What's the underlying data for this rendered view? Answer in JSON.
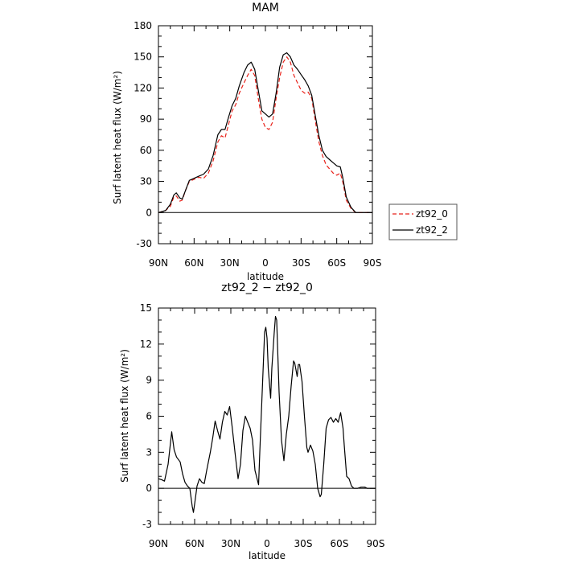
{
  "chart_data": [
    {
      "type": "line",
      "title": "MAM",
      "xlabel": "latitude",
      "ylabel": "Surf latent heat flux (W/m²)",
      "xlim": [
        90,
        -90
      ],
      "ylim": [
        -30,
        180
      ],
      "xticks": [
        {
          "value": 90,
          "label": "90N"
        },
        {
          "value": 60,
          "label": "60N"
        },
        {
          "value": 30,
          "label": "30N"
        },
        {
          "value": 0,
          "label": "0"
        },
        {
          "value": -30,
          "label": "30S"
        },
        {
          "value": -60,
          "label": "60S"
        },
        {
          "value": -90,
          "label": "90S"
        }
      ],
      "yticks": [
        -30,
        0,
        30,
        60,
        90,
        120,
        150,
        180
      ],
      "grid": false,
      "legend_position": "outside-right",
      "series": [
        {
          "name": "zt92_0",
          "color": "#e8221a",
          "dash": "dashed",
          "points": [
            [
              90,
              0
            ],
            [
              84,
              2
            ],
            [
              80,
              6
            ],
            [
              77,
              15
            ],
            [
              75,
              16
            ],
            [
              72,
              11
            ],
            [
              70,
              12
            ],
            [
              67,
              22
            ],
            [
              64,
              30
            ],
            [
              60,
              32
            ],
            [
              56,
              34
            ],
            [
              52,
              33
            ],
            [
              48,
              38
            ],
            [
              44,
              50
            ],
            [
              40,
              68
            ],
            [
              37,
              74
            ],
            [
              34,
              72
            ],
            [
              31,
              85
            ],
            [
              28,
              98
            ],
            [
              25,
              104
            ],
            [
              22,
              115
            ],
            [
              18,
              125
            ],
            [
              15,
              132
            ],
            [
              12,
              138
            ],
            [
              9,
              132
            ],
            [
              6,
              110
            ],
            [
              3,
              90
            ],
            [
              0,
              82
            ],
            [
              -3,
              80
            ],
            [
              -6,
              87
            ],
            [
              -9,
              110
            ],
            [
              -12,
              130
            ],
            [
              -15,
              145
            ],
            [
              -18,
              150
            ],
            [
              -21,
              145
            ],
            [
              -24,
              132
            ],
            [
              -27,
              125
            ],
            [
              -30,
              118
            ],
            [
              -33,
              115
            ],
            [
              -36,
              116
            ],
            [
              -39,
              110
            ],
            [
              -42,
              88
            ],
            [
              -45,
              68
            ],
            [
              -48,
              55
            ],
            [
              -51,
              46
            ],
            [
              -54,
              42
            ],
            [
              -57,
              38
            ],
            [
              -60,
              36
            ],
            [
              -63,
              38
            ],
            [
              -65,
              30
            ],
            [
              -68,
              12
            ],
            [
              -72,
              4
            ],
            [
              -76,
              0
            ],
            [
              -80,
              0
            ],
            [
              -85,
              0
            ],
            [
              -90,
              0
            ]
          ]
        },
        {
          "name": "zt92_2",
          "color": "#000000",
          "dash": "solid",
          "points": [
            [
              90,
              0
            ],
            [
              84,
              2
            ],
            [
              80,
              8
            ],
            [
              77,
              17
            ],
            [
              75,
              19
            ],
            [
              72,
              14
            ],
            [
              70,
              13
            ],
            [
              67,
              22
            ],
            [
              64,
              31
            ],
            [
              60,
              33
            ],
            [
              56,
              35
            ],
            [
              52,
              37
            ],
            [
              48,
              42
            ],
            [
              44,
              55
            ],
            [
              40,
              75
            ],
            [
              37,
              80
            ],
            [
              34,
              80
            ],
            [
              31,
              92
            ],
            [
              28,
              103
            ],
            [
              25,
              110
            ],
            [
              22,
              122
            ],
            [
              18,
              135
            ],
            [
              15,
              142
            ],
            [
              12,
              145
            ],
            [
              9,
              138
            ],
            [
              6,
              118
            ],
            [
              3,
              98
            ],
            [
              0,
              95
            ],
            [
              -3,
              92
            ],
            [
              -6,
              95
            ],
            [
              -9,
              115
            ],
            [
              -12,
              140
            ],
            [
              -15,
              152
            ],
            [
              -18,
              154
            ],
            [
              -21,
              150
            ],
            [
              -24,
              142
            ],
            [
              -27,
              138
            ],
            [
              -30,
              133
            ],
            [
              -33,
              128
            ],
            [
              -36,
              122
            ],
            [
              -39,
              113
            ],
            [
              -42,
              93
            ],
            [
              -45,
              74
            ],
            [
              -48,
              60
            ],
            [
              -51,
              54
            ],
            [
              -54,
              51
            ],
            [
              -57,
              48
            ],
            [
              -60,
              45
            ],
            [
              -63,
              44
            ],
            [
              -65,
              34
            ],
            [
              -68,
              15
            ],
            [
              -72,
              5
            ],
            [
              -76,
              0
            ],
            [
              -80,
              0
            ],
            [
              -85,
              0
            ],
            [
              -90,
              0
            ]
          ]
        }
      ]
    },
    {
      "type": "line",
      "title": "zt92_2 − zt92_0",
      "xlabel": "latitude",
      "ylabel": "Surf latent heat flux (W/m²)",
      "xlim": [
        90,
        -90
      ],
      "ylim": [
        -3,
        15
      ],
      "xticks": [
        {
          "value": 90,
          "label": "90N"
        },
        {
          "value": 60,
          "label": "60N"
        },
        {
          "value": 30,
          "label": "30N"
        },
        {
          "value": 0,
          "label": "0"
        },
        {
          "value": -30,
          "label": "30S"
        },
        {
          "value": -60,
          "label": "60S"
        },
        {
          "value": -90,
          "label": "90S"
        }
      ],
      "yticks": [
        -3,
        0,
        3,
        6,
        9,
        12,
        15
      ],
      "grid": false,
      "series": [
        {
          "color": "#000000",
          "dash": "solid",
          "points": [
            [
              90,
              0.8
            ],
            [
              87,
              0.7
            ],
            [
              85,
              0.6
            ],
            [
              82,
              2
            ],
            [
              79,
              4.7
            ],
            [
              77,
              3.2
            ],
            [
              75,
              2.6
            ],
            [
              72,
              2.2
            ],
            [
              70,
              1.2
            ],
            [
              68,
              0.5
            ],
            [
              66,
              0.2
            ],
            [
              64,
              0
            ],
            [
              62,
              -1.5
            ],
            [
              61,
              -2
            ],
            [
              60,
              -1.3
            ],
            [
              58,
              0.2
            ],
            [
              56,
              0.8
            ],
            [
              54,
              0.5
            ],
            [
              52,
              0.4
            ],
            [
              50,
              1.5
            ],
            [
              47,
              3
            ],
            [
              45,
              4.2
            ],
            [
              43,
              5.6
            ],
            [
              41,
              4.8
            ],
            [
              39,
              4.1
            ],
            [
              37,
              5.5
            ],
            [
              35,
              6.4
            ],
            [
              33,
              6.1
            ],
            [
              31,
              6.8
            ],
            [
              29,
              5.2
            ],
            [
              26,
              2.5
            ],
            [
              24,
              0.8
            ],
            [
              22,
              2
            ],
            [
              20,
              4.8
            ],
            [
              18,
              6
            ],
            [
              16,
              5.5
            ],
            [
              14,
              5
            ],
            [
              12,
              4
            ],
            [
              10,
              1.5
            ],
            [
              9,
              1.1
            ],
            [
              7,
              0.3
            ],
            [
              6,
              3
            ],
            [
              4,
              8
            ],
            [
              2,
              13
            ],
            [
              1,
              13.4
            ],
            [
              0,
              12.5
            ],
            [
              -1,
              10
            ],
            [
              -3,
              7.5
            ],
            [
              -4,
              10
            ],
            [
              -6,
              13
            ],
            [
              -7,
              14.3
            ],
            [
              -8,
              14
            ],
            [
              -9,
              11
            ],
            [
              -10,
              8
            ],
            [
              -12,
              4
            ],
            [
              -14,
              2.3
            ],
            [
              -16,
              4.5
            ],
            [
              -18,
              6
            ],
            [
              -20,
              8.5
            ],
            [
              -22,
              10.6
            ],
            [
              -23,
              10.4
            ],
            [
              -25,
              9.3
            ],
            [
              -26,
              10.3
            ],
            [
              -27,
              10.3
            ],
            [
              -29,
              8.9
            ],
            [
              -31,
              6
            ],
            [
              -33,
              3.4
            ],
            [
              -34,
              3
            ],
            [
              -35,
              3.3
            ],
            [
              -36,
              3.6
            ],
            [
              -38,
              3.1
            ],
            [
              -40,
              2
            ],
            [
              -42,
              0
            ],
            [
              -44,
              -0.7
            ],
            [
              -45,
              -0.5
            ],
            [
              -47,
              2
            ],
            [
              -49,
              5
            ],
            [
              -51,
              5.7
            ],
            [
              -53,
              5.9
            ],
            [
              -55,
              5.5
            ],
            [
              -57,
              5.8
            ],
            [
              -59,
              5.5
            ],
            [
              -61,
              6.3
            ],
            [
              -63,
              5
            ],
            [
              -64,
              3.6
            ],
            [
              -66,
              1
            ],
            [
              -68,
              0.8
            ],
            [
              -70,
              0.2
            ],
            [
              -72,
              0
            ],
            [
              -75,
              0
            ],
            [
              -78,
              0.1
            ],
            [
              -81,
              0.1
            ],
            [
              -83,
              0
            ],
            [
              -86,
              0
            ],
            [
              -90,
              0
            ]
          ]
        }
      ]
    }
  ]
}
